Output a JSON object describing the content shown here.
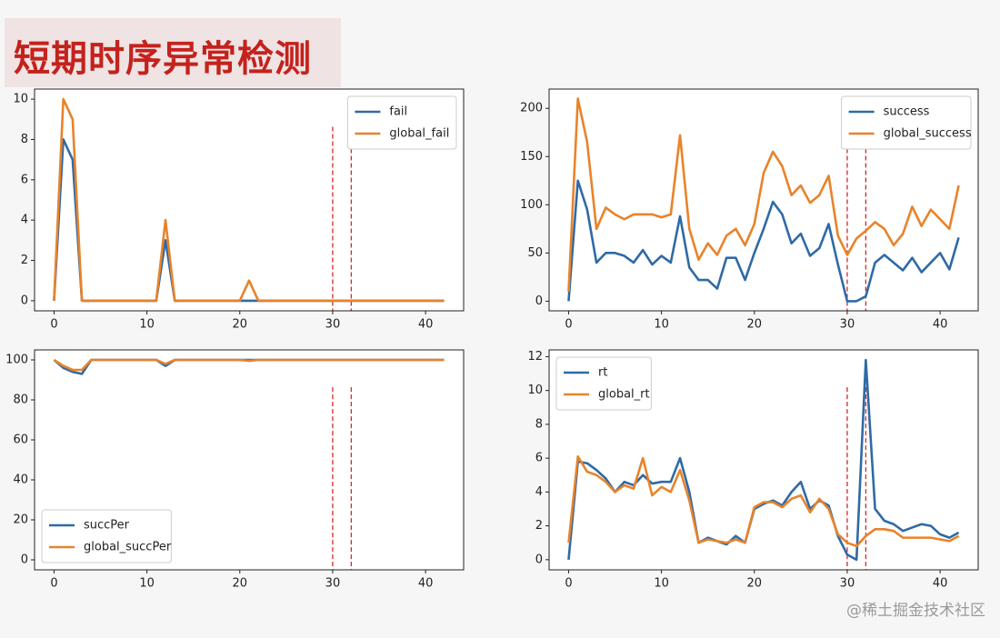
{
  "title": "短期时序异常检测",
  "watermark": "@稀土掘金技术社区",
  "chart_data": [
    {
      "type": "line",
      "x": [
        0,
        1,
        2,
        3,
        4,
        5,
        6,
        7,
        8,
        9,
        10,
        11,
        12,
        13,
        14,
        15,
        16,
        17,
        18,
        19,
        20,
        21,
        22,
        23,
        24,
        25,
        26,
        27,
        28,
        29,
        30,
        31,
        32,
        33,
        34,
        35,
        36,
        37,
        38,
        39,
        40,
        41,
        42
      ],
      "series": [
        {
          "name": "fail",
          "color": "#2f6aa6",
          "values": [
            0,
            8,
            7,
            0,
            0,
            0,
            0,
            0,
            0,
            0,
            0,
            0,
            3,
            0,
            0,
            0,
            0,
            0,
            0,
            0,
            0,
            0,
            0,
            0,
            0,
            0,
            0,
            0,
            0,
            0,
            0,
            0,
            0,
            0,
            0,
            0,
            0,
            0,
            0,
            0,
            0,
            0,
            0
          ]
        },
        {
          "name": "global_fail",
          "color": "#e8832a",
          "values": [
            0,
            10,
            9,
            0,
            0,
            0,
            0,
            0,
            0,
            0,
            0,
            0,
            4,
            0,
            0,
            0,
            0,
            0,
            0,
            0,
            0,
            1,
            0,
            0,
            0,
            0,
            0,
            0,
            0,
            0,
            0,
            0,
            0,
            0,
            0,
            0,
            0,
            0,
            0,
            0,
            0,
            0,
            0
          ]
        }
      ],
      "xlim": [
        -2.1,
        44.1
      ],
      "ylim": [
        -0.5,
        10.5
      ],
      "xticks": [
        0,
        10,
        20,
        30,
        40
      ],
      "yticks": [
        0,
        2,
        4,
        6,
        8,
        10
      ],
      "vlines": [
        30,
        32
      ],
      "vline_color": "#d62728",
      "legend": "upper-right"
    },
    {
      "type": "line",
      "x": [
        0,
        1,
        2,
        3,
        4,
        5,
        6,
        7,
        8,
        9,
        10,
        11,
        12,
        13,
        14,
        15,
        16,
        17,
        18,
        19,
        20,
        21,
        22,
        23,
        24,
        25,
        26,
        27,
        28,
        29,
        30,
        31,
        32,
        33,
        34,
        35,
        36,
        37,
        38,
        39,
        40,
        41,
        42
      ],
      "series": [
        {
          "name": "success",
          "color": "#2f6aa6",
          "values": [
            0,
            125,
            95,
            40,
            50,
            50,
            47,
            40,
            53,
            38,
            47,
            40,
            88,
            35,
            22,
            22,
            13,
            45,
            45,
            22,
            50,
            75,
            103,
            90,
            60,
            70,
            47,
            55,
            80,
            38,
            0,
            0,
            5,
            40,
            48,
            40,
            32,
            45,
            30,
            40,
            50,
            33,
            66
          ]
        },
        {
          "name": "global_success",
          "color": "#e8832a",
          "values": [
            10,
            210,
            165,
            75,
            97,
            90,
            85,
            90,
            90,
            90,
            87,
            90,
            172,
            75,
            43,
            60,
            48,
            68,
            75,
            58,
            80,
            133,
            155,
            140,
            110,
            120,
            102,
            110,
            130,
            68,
            48,
            65,
            73,
            82,
            75,
            58,
            70,
            98,
            78,
            95,
            85,
            75,
            120
          ]
        }
      ],
      "xlim": [
        -2.1,
        44.1
      ],
      "ylim": [
        -10,
        220
      ],
      "xticks": [
        0,
        10,
        20,
        30,
        40
      ],
      "yticks": [
        0,
        50,
        100,
        150,
        200
      ],
      "vlines": [
        30,
        32
      ],
      "vline_color": "#d62728",
      "legend": "upper-right"
    },
    {
      "type": "line",
      "x": [
        0,
        1,
        2,
        3,
        4,
        5,
        6,
        7,
        8,
        9,
        10,
        11,
        12,
        13,
        14,
        15,
        16,
        17,
        18,
        19,
        20,
        21,
        22,
        23,
        24,
        25,
        26,
        27,
        28,
        29,
        30,
        31,
        32,
        33,
        34,
        35,
        36,
        37,
        38,
        39,
        40,
        41,
        42
      ],
      "series": [
        {
          "name": "succPer",
          "color": "#2f6aa6",
          "values": [
            100,
            96,
            94,
            93,
            100,
            100,
            100,
            100,
            100,
            100,
            100,
            100,
            97,
            100,
            100,
            100,
            100,
            100,
            100,
            100,
            100,
            100,
            100,
            100,
            100,
            100,
            100,
            100,
            100,
            100,
            100,
            100,
            100,
            100,
            100,
            100,
            100,
            100,
            100,
            100,
            100,
            100,
            100
          ]
        },
        {
          "name": "global_succPer",
          "color": "#e8832a",
          "values": [
            100,
            97,
            95,
            95,
            100,
            100,
            100,
            100,
            100,
            100,
            100,
            100,
            98,
            100,
            100,
            100,
            100,
            100,
            100,
            100,
            100,
            99.5,
            100,
            100,
            100,
            100,
            100,
            100,
            100,
            100,
            100,
            100,
            100,
            100,
            100,
            100,
            100,
            100,
            100,
            100,
            100,
            100,
            100
          ]
        }
      ],
      "xlim": [
        -2.1,
        44.1
      ],
      "ylim": [
        -5,
        105
      ],
      "xticks": [
        0,
        10,
        20,
        30,
        40
      ],
      "yticks": [
        0,
        20,
        40,
        60,
        80,
        100
      ],
      "vlines": [
        30,
        32
      ],
      "vline_color": "#d62728",
      "legend": "lower-left"
    },
    {
      "type": "line",
      "x": [
        0,
        1,
        2,
        3,
        4,
        5,
        6,
        7,
        8,
        9,
        10,
        11,
        12,
        13,
        14,
        15,
        16,
        17,
        18,
        19,
        20,
        21,
        22,
        23,
        24,
        25,
        26,
        27,
        28,
        29,
        30,
        31,
        32,
        33,
        34,
        35,
        36,
        37,
        38,
        39,
        40,
        41,
        42
      ],
      "series": [
        {
          "name": "rt",
          "color": "#2f6aa6",
          "values": [
            0,
            5.8,
            5.7,
            5.3,
            4.8,
            4,
            4.6,
            4.4,
            5,
            4.5,
            4.6,
            4.6,
            6,
            4,
            1,
            1.3,
            1.1,
            0.9,
            1.4,
            1,
            3,
            3.3,
            3.5,
            3.2,
            4,
            4.6,
            3,
            3.5,
            3.2,
            1.4,
            0.3,
            0,
            11.8,
            3,
            2.3,
            2.1,
            1.7,
            1.9,
            2.1,
            2,
            1.5,
            1.3,
            1.6
          ]
        },
        {
          "name": "global_rt",
          "color": "#e8832a",
          "values": [
            1,
            6.1,
            5.2,
            5,
            4.6,
            4,
            4.4,
            4.2,
            6,
            3.8,
            4.3,
            4,
            5.3,
            3.5,
            1,
            1.2,
            1.1,
            1,
            1.2,
            1,
            3.1,
            3.4,
            3.4,
            3.1,
            3.6,
            3.8,
            2.8,
            3.6,
            3,
            1.5,
            1,
            0.8,
            1.4,
            1.8,
            1.8,
            1.7,
            1.3,
            1.3,
            1.3,
            1.3,
            1.2,
            1.1,
            1.4
          ]
        }
      ],
      "xlim": [
        -2.1,
        44.1
      ],
      "ylim": [
        -0.6,
        12.4
      ],
      "xticks": [
        0,
        10,
        20,
        30,
        40
      ],
      "yticks": [
        0,
        2,
        4,
        6,
        8,
        10,
        12
      ],
      "vlines": [
        30,
        32
      ],
      "vline_color": "#d62728",
      "legend": "upper-left"
    }
  ]
}
